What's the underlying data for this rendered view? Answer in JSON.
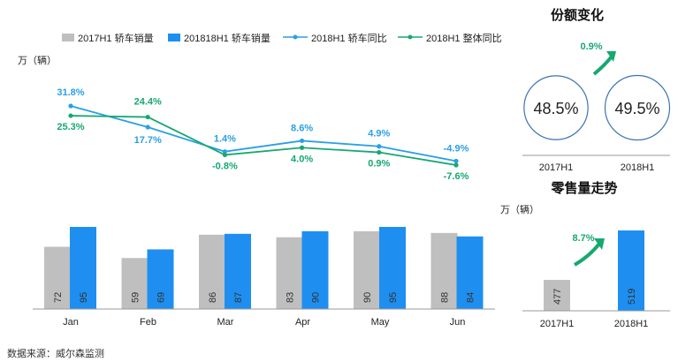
{
  "chart_data": [
    {
      "type": "bar+line",
      "unit_label": "万（辆）",
      "categories": [
        "Jan",
        "Feb",
        "Mar",
        "Apr",
        "May",
        "Jun"
      ],
      "legend": [
        {
          "name": "2017H1 轿车销量",
          "kind": "bar",
          "color": "#bfbfbf"
        },
        {
          "name": "201818H1 轿车销量",
          "kind": "bar",
          "color": "#1e8ff0"
        },
        {
          "name": "2018H1 轿车同比",
          "kind": "line",
          "color": "#2a9fe6"
        },
        {
          "name": "2018H1 整体同比",
          "kind": "line",
          "color": "#17a870"
        }
      ],
      "bar_series": [
        {
          "name": "2017H1 轿车销量",
          "values": [
            72,
            59,
            86,
            83,
            90,
            88
          ],
          "labels": [
            "72",
            "59",
            "86",
            "83",
            "90",
            "88"
          ]
        },
        {
          "name": "201818H1 轿车销量",
          "values": [
            95,
            69,
            87,
            90,
            95,
            84
          ],
          "labels": [
            "95",
            "69",
            "87",
            "90",
            "95",
            "84"
          ]
        }
      ],
      "line_series": [
        {
          "name": "2018H1 轿车同比",
          "values": [
            31.8,
            17.7,
            1.4,
            8.6,
            4.9,
            -4.9
          ],
          "labels": [
            "31.8%",
            "17.7%",
            "1.4%",
            "8.6%",
            "4.9%",
            "-4.9%"
          ]
        },
        {
          "name": "2018H1 整体同比",
          "values": [
            25.3,
            24.4,
            -0.8,
            4.0,
            0.9,
            -7.6
          ],
          "labels": [
            "25.3%",
            "24.4%",
            "-0.8%",
            "4.0%",
            "0.9%",
            "-7.6%"
          ]
        }
      ]
    },
    {
      "type": "bubble",
      "title": "份额变化",
      "categories": [
        "2017H1",
        "2018H1"
      ],
      "values": [
        48.5,
        49.5
      ],
      "labels": [
        "48.5%",
        "49.5%"
      ],
      "change_label": "0.9%"
    },
    {
      "type": "bar",
      "title": "零售量走势",
      "unit_label": "万（辆）",
      "categories": [
        "2017H1",
        "2018H1"
      ],
      "values": [
        477,
        519
      ],
      "labels": [
        "477",
        "519"
      ],
      "colors": [
        "#bfbfbf",
        "#1e8ff0"
      ],
      "change_label": "8.7%"
    }
  ],
  "source": "数据来源：威尔森监测",
  "colors": {
    "bar_2017": "#bfbfbf",
    "bar_2018": "#1e8ff0",
    "line_sedan": "#2a9fe6",
    "line_overall": "#17a870",
    "arrow": "#17a870",
    "circle_stroke": "#3a73b4"
  }
}
